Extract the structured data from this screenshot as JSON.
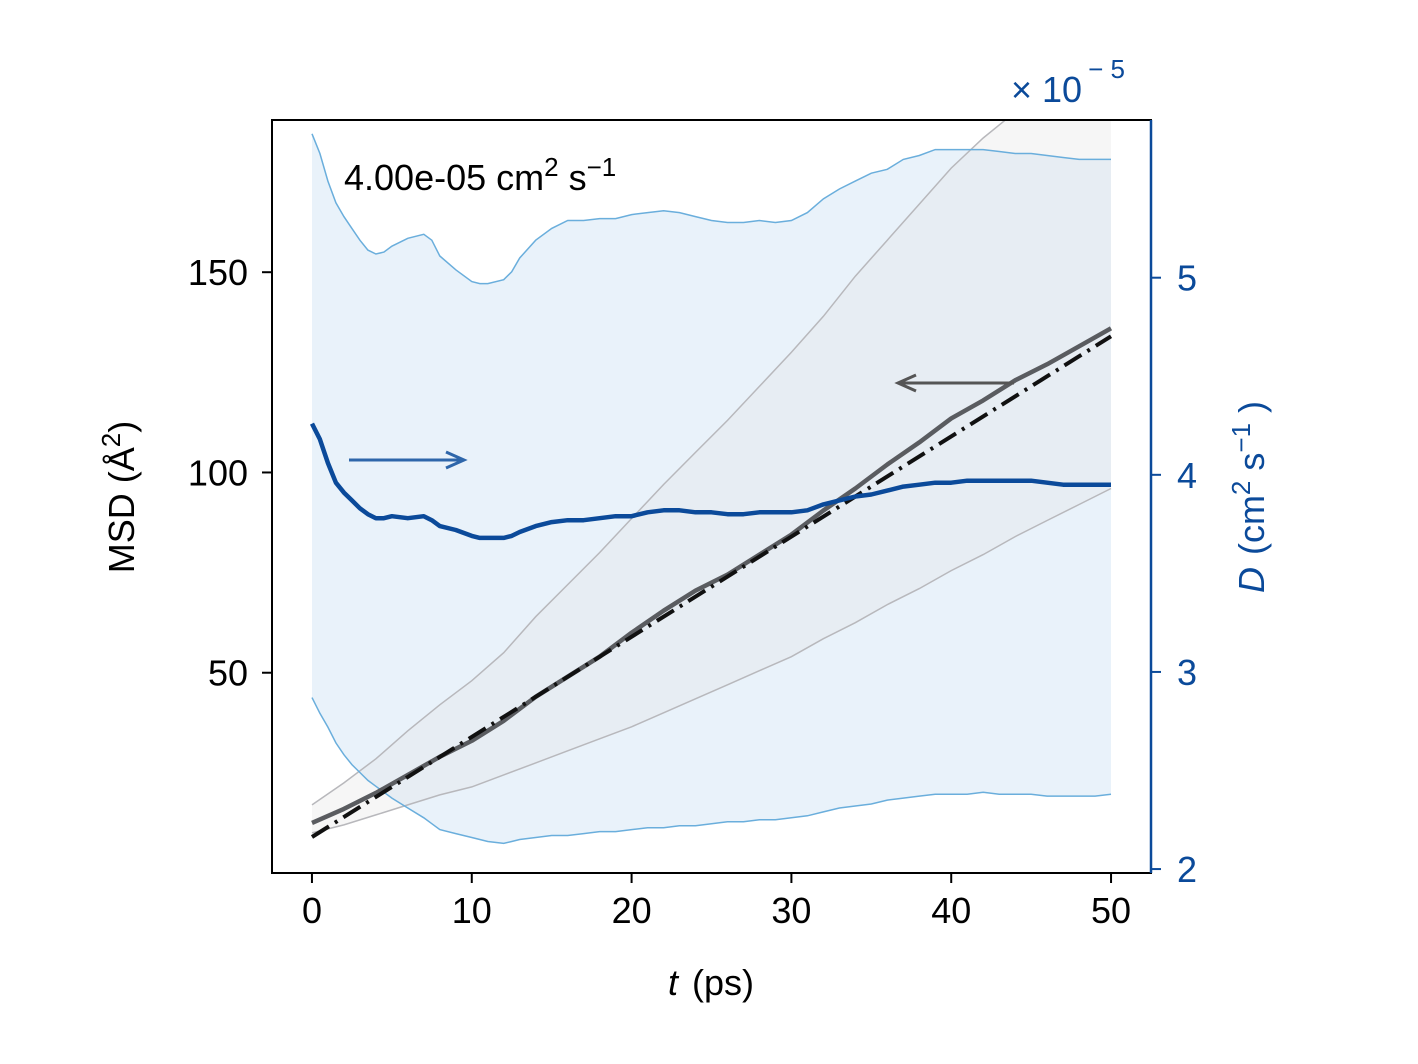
{
  "chart_data": {
    "type": "line",
    "annotation": "4.00e-05 cm",
    "annotation_units": {
      "exp2": "2",
      "s": "s",
      "exp_neg1": "−1"
    },
    "xlabel": {
      "symbol": "t",
      "unit": "(ps)"
    },
    "ylabel_left": "MSD (Å",
    "ylabel_left_sup": "2",
    "ylabel_left_close": ")",
    "ylabel_right": {
      "symbol": "D",
      "text": "(cm",
      "sup1": "2",
      "mid": "s",
      "sup2": "−1",
      "close": ")"
    },
    "right_multiplier": {
      "text": "× 10",
      "exp": "− 5"
    },
    "xlim": [
      -2.5,
      52.5
    ],
    "ylim_left": [
      0,
      188
    ],
    "ylim_right": [
      1.98,
      5.8
    ],
    "x_ticks": [
      0,
      10,
      20,
      30,
      40,
      50
    ],
    "y_left_ticks": [
      50,
      100,
      150
    ],
    "y_right_ticks": [
      2,
      3,
      4,
      5
    ],
    "colors": {
      "msd": "#5a5c60",
      "fit": "#111111",
      "diffusivity": "#0b4a9a",
      "diff_band": "#dbe9f6",
      "diff_band_edge": "#6aaedc",
      "msd_band": "#e4e4e4",
      "msd_band_edge": "#b8b8bc",
      "right_axis": "#0b4a9a",
      "arrow_left": "#555555",
      "arrow_right": "#2e66aa"
    },
    "series": [
      {
        "role": "msd",
        "axis": "left",
        "x": [
          0,
          2,
          4,
          6,
          8,
          10,
          12,
          14,
          16,
          18,
          20,
          22,
          24,
          26,
          28,
          30,
          32,
          34,
          36,
          38,
          40,
          42,
          44,
          46,
          48,
          50
        ],
        "values": [
          12.5,
          16,
          20,
          24.5,
          29,
          33,
          38,
          44,
          49,
          54,
          60,
          65.5,
          70.5,
          74.5,
          79.5,
          84.5,
          90.5,
          96,
          102,
          107.5,
          113.5,
          118,
          123,
          127,
          131.5,
          136
        ]
      },
      {
        "role": "msd_upper",
        "axis": "left",
        "x": [
          0,
          2,
          4,
          6,
          8,
          10,
          12,
          14,
          16,
          18,
          20,
          22,
          24,
          26,
          28,
          30,
          32,
          34,
          36,
          38,
          40,
          42,
          44,
          46,
          48,
          50
        ],
        "values": [
          17,
          22.5,
          28.5,
          35.5,
          42,
          48,
          55,
          64,
          72,
          80,
          88.5,
          97,
          105,
          113,
          121.5,
          130,
          139,
          149,
          158,
          167,
          176,
          183.5,
          190,
          196,
          202,
          209
        ]
      },
      {
        "role": "msd_lower",
        "axis": "left",
        "x": [
          0,
          2,
          4,
          6,
          8,
          10,
          12,
          14,
          16,
          18,
          20,
          22,
          24,
          26,
          28,
          30,
          32,
          34,
          36,
          38,
          40,
          42,
          44,
          46,
          48,
          50
        ],
        "values": [
          10,
          12,
          14.5,
          17,
          19.5,
          21.5,
          24.5,
          27.5,
          30.5,
          33.5,
          36.5,
          40,
          43.5,
          47,
          50.5,
          54,
          58.5,
          62.5,
          67,
          71,
          75.5,
          79.5,
          84,
          88,
          92,
          96
        ]
      },
      {
        "role": "fit",
        "axis": "left",
        "x": [
          0,
          50
        ],
        "values": [
          9,
          134
        ]
      },
      {
        "role": "diffusivity",
        "axis": "right",
        "x": [
          0,
          0.5,
          1,
          1.5,
          2,
          2.5,
          3,
          3.5,
          4,
          4.5,
          5,
          6,
          7,
          7.5,
          8,
          9,
          10,
          10.5,
          11,
          12,
          12.5,
          13,
          14,
          15,
          16,
          17,
          18,
          19,
          20,
          21,
          22,
          23,
          24,
          25,
          26,
          27,
          28,
          29,
          30,
          31,
          32,
          33,
          34,
          35,
          36,
          37,
          38,
          39,
          40,
          41,
          42,
          43,
          44,
          45,
          46,
          47,
          48,
          49,
          50
        ],
        "values": [
          4.26,
          4.18,
          4.06,
          3.96,
          3.91,
          3.87,
          3.83,
          3.8,
          3.78,
          3.78,
          3.79,
          3.78,
          3.79,
          3.77,
          3.74,
          3.72,
          3.69,
          3.68,
          3.68,
          3.68,
          3.69,
          3.71,
          3.74,
          3.76,
          3.77,
          3.77,
          3.78,
          3.79,
          3.79,
          3.81,
          3.82,
          3.82,
          3.81,
          3.81,
          3.8,
          3.8,
          3.81,
          3.81,
          3.81,
          3.82,
          3.85,
          3.87,
          3.89,
          3.9,
          3.92,
          3.94,
          3.95,
          3.96,
          3.96,
          3.97,
          3.97,
          3.97,
          3.97,
          3.97,
          3.96,
          3.95,
          3.95,
          3.95,
          3.95
        ]
      },
      {
        "role": "diff_upper",
        "axis": "right",
        "x": [
          0,
          0.5,
          1,
          1.5,
          2,
          2.5,
          3,
          3.5,
          4,
          4.5,
          5,
          6,
          7,
          7.5,
          8,
          9,
          10,
          10.5,
          11,
          12,
          12.5,
          13,
          14,
          15,
          16,
          17,
          18,
          19,
          20,
          21,
          22,
          23,
          24,
          25,
          26,
          27,
          28,
          29,
          30,
          31,
          32,
          33,
          34,
          35,
          36,
          37,
          38,
          39,
          40,
          41,
          42,
          43,
          44,
          45,
          46,
          47,
          48,
          49,
          50
        ],
        "values": [
          5.73,
          5.63,
          5.49,
          5.38,
          5.31,
          5.25,
          5.19,
          5.14,
          5.12,
          5.13,
          5.16,
          5.2,
          5.22,
          5.19,
          5.11,
          5.04,
          4.98,
          4.97,
          4.97,
          4.99,
          5.03,
          5.1,
          5.19,
          5.25,
          5.29,
          5.29,
          5.3,
          5.3,
          5.32,
          5.33,
          5.34,
          5.33,
          5.31,
          5.29,
          5.28,
          5.28,
          5.29,
          5.28,
          5.29,
          5.33,
          5.4,
          5.45,
          5.49,
          5.53,
          5.55,
          5.6,
          5.62,
          5.65,
          5.65,
          5.65,
          5.65,
          5.64,
          5.63,
          5.63,
          5.62,
          5.61,
          5.6,
          5.6,
          5.6
        ]
      },
      {
        "role": "diff_lower",
        "axis": "right",
        "x": [
          0,
          0.5,
          1,
          1.5,
          2,
          2.5,
          3,
          3.5,
          4,
          4.5,
          5,
          6,
          7,
          7.5,
          8,
          9,
          10,
          10.5,
          11,
          12,
          12.5,
          13,
          14,
          15,
          16,
          17,
          18,
          19,
          20,
          21,
          22,
          23,
          24,
          25,
          26,
          27,
          28,
          29,
          30,
          31,
          32,
          33,
          34,
          35,
          36,
          37,
          38,
          39,
          40,
          41,
          42,
          43,
          44,
          45,
          46,
          47,
          48,
          49,
          50
        ],
        "values": [
          2.87,
          2.79,
          2.72,
          2.64,
          2.58,
          2.53,
          2.49,
          2.45,
          2.42,
          2.39,
          2.36,
          2.31,
          2.26,
          2.23,
          2.2,
          2.18,
          2.16,
          2.15,
          2.14,
          2.13,
          2.14,
          2.15,
          2.16,
          2.17,
          2.17,
          2.18,
          2.19,
          2.19,
          2.2,
          2.21,
          2.21,
          2.22,
          2.22,
          2.23,
          2.24,
          2.24,
          2.25,
          2.25,
          2.26,
          2.27,
          2.29,
          2.31,
          2.32,
          2.33,
          2.35,
          2.36,
          2.37,
          2.38,
          2.38,
          2.38,
          2.39,
          2.38,
          2.38,
          2.38,
          2.37,
          2.37,
          2.37,
          2.37,
          2.38
        ]
      }
    ]
  }
}
